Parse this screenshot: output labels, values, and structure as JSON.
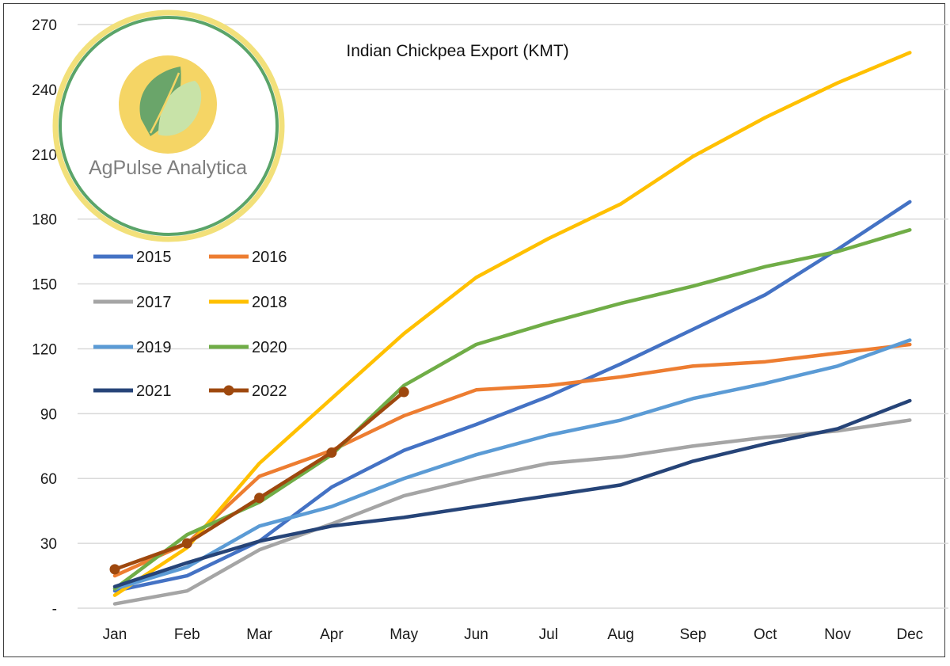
{
  "chart_data": {
    "type": "line",
    "title": "Indian Chickpea Export (KMT)",
    "xlabel": "",
    "ylabel": "",
    "categories": [
      "Jan",
      "Feb",
      "Mar",
      "Apr",
      "May",
      "Jun",
      "Jul",
      "Aug",
      "Sep",
      "Oct",
      "Nov",
      "Dec"
    ],
    "ylim": [
      0,
      270
    ],
    "y_ticks": [
      {
        "value": 0,
        "label": "-"
      },
      {
        "value": 30,
        "label": "30"
      },
      {
        "value": 60,
        "label": "60"
      },
      {
        "value": 90,
        "label": "90"
      },
      {
        "value": 120,
        "label": "120"
      },
      {
        "value": 150,
        "label": "150"
      },
      {
        "value": 180,
        "label": "180"
      },
      {
        "value": 210,
        "label": "210"
      },
      {
        "value": 240,
        "label": "240"
      },
      {
        "value": 270,
        "label": "270"
      }
    ],
    "grid": "horizontal",
    "legend_position": "left",
    "series": [
      {
        "name": "2015",
        "color": "#4472c4",
        "markers": false,
        "values": [
          8,
          15,
          31,
          56,
          73,
          85,
          98,
          113,
          129,
          145,
          166,
          188
        ]
      },
      {
        "name": "2016",
        "color": "#ed7d31",
        "markers": false,
        "values": [
          15,
          30,
          61,
          73,
          89,
          101,
          103,
          107,
          112,
          114,
          118,
          122
        ]
      },
      {
        "name": "2017",
        "color": "#a5a5a5",
        "markers": false,
        "values": [
          2,
          8,
          27,
          39,
          52,
          60,
          67,
          70,
          75,
          79,
          82,
          87
        ]
      },
      {
        "name": "2018",
        "color": "#ffc000",
        "markers": false,
        "values": [
          6,
          28,
          67,
          97,
          127,
          153,
          171,
          187,
          209,
          227,
          243,
          257
        ]
      },
      {
        "name": "2019",
        "color": "#5b9bd5",
        "markers": false,
        "values": [
          9,
          19,
          38,
          47,
          60,
          71,
          80,
          87,
          97,
          104,
          112,
          124
        ]
      },
      {
        "name": "2020",
        "color": "#70ad47",
        "markers": false,
        "values": [
          9,
          34,
          49,
          71,
          103,
          122,
          132,
          141,
          149,
          158,
          165,
          175
        ]
      },
      {
        "name": "2021",
        "color": "#264478",
        "markers": false,
        "values": [
          10,
          21,
          31,
          38,
          42,
          47,
          52,
          57,
          68,
          76,
          83,
          96
        ]
      },
      {
        "name": "2022",
        "color": "#9e480e",
        "markers": true,
        "values": [
          18,
          30,
          51,
          72,
          100,
          null,
          null,
          null,
          null,
          null,
          null,
          null
        ]
      }
    ]
  },
  "logo": {
    "text": "AgPulse Analytica",
    "ring_outer_color": "#f2e07a",
    "ring_inner_color": "#5aa469",
    "sun_color": "#f5d565",
    "leaf_dark_color": "#6aa56a",
    "leaf_light_color": "#c8e3a8"
  }
}
